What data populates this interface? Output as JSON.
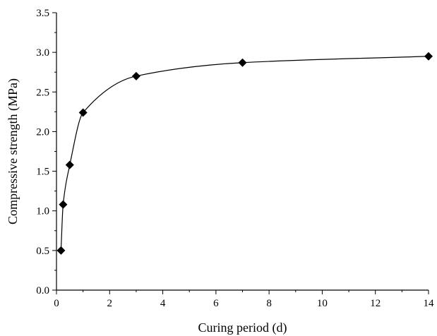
{
  "chart_data": {
    "type": "scatter",
    "title": "",
    "xlabel": "Curing period (d)",
    "ylabel": "Compressive strength (MPa)",
    "xlim": [
      0,
      14
    ],
    "ylim": [
      0,
      3.5
    ],
    "x_ticks": [
      "0",
      "2",
      "4",
      "6",
      "8",
      "10",
      "12",
      "14"
    ],
    "y_ticks": [
      "0.0",
      "0.5",
      "1.0",
      "1.5",
      "2.0",
      "2.5",
      "3.0",
      "3.5"
    ],
    "grid": false,
    "legend": "none",
    "marker": "diamond",
    "series": [
      {
        "x": [
          0.17,
          0.25,
          0.5,
          1,
          3,
          7,
          14
        ],
        "y": [
          0.5,
          1.08,
          1.58,
          2.24,
          2.7,
          2.87,
          2.95
        ],
        "fit_curve": true
      }
    ]
  }
}
